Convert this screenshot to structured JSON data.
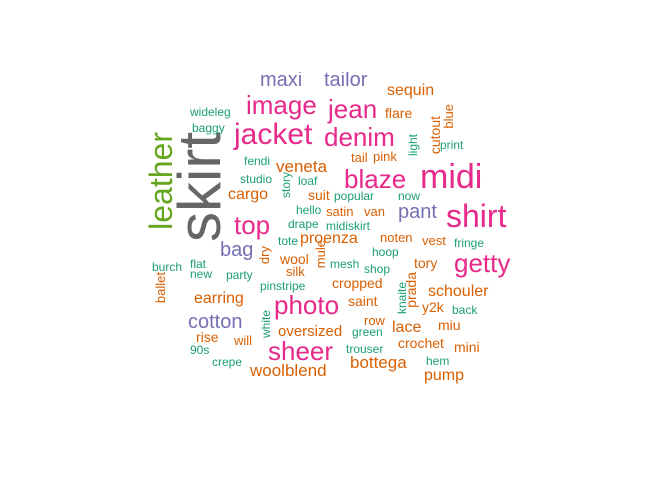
{
  "colors": {
    "pink": "#e7298a",
    "orange": "#d95f02",
    "teal": "#1b9e77",
    "purple": "#7570b3",
    "green": "#66a61e",
    "gray": "#666666"
  },
  "words": [
    {
      "t": "skirt",
      "c": "gray"
    },
    {
      "t": "leather",
      "c": "green"
    },
    {
      "t": "midi",
      "c": "pink"
    },
    {
      "t": "shirt",
      "c": "pink"
    },
    {
      "t": "blaze",
      "c": "pink"
    },
    {
      "t": "jacket",
      "c": "pink"
    },
    {
      "t": "denim",
      "c": "pink"
    },
    {
      "t": "image",
      "c": "pink"
    },
    {
      "t": "jean",
      "c": "pink"
    },
    {
      "t": "photo",
      "c": "pink"
    },
    {
      "t": "sheer",
      "c": "pink"
    },
    {
      "t": "getty",
      "c": "pink"
    },
    {
      "t": "top",
      "c": "pink"
    },
    {
      "t": "maxi",
      "c": "purple"
    },
    {
      "t": "tailor",
      "c": "purple"
    },
    {
      "t": "pant",
      "c": "purple"
    },
    {
      "t": "bag",
      "c": "purple"
    },
    {
      "t": "cotton",
      "c": "purple"
    },
    {
      "t": "sequin",
      "c": "orange"
    },
    {
      "t": "flare",
      "c": "orange"
    },
    {
      "t": "veneta",
      "c": "orange"
    },
    {
      "t": "cargo",
      "c": "orange"
    },
    {
      "t": "proenza",
      "c": "orange"
    },
    {
      "t": "earring",
      "c": "orange"
    },
    {
      "t": "schouler",
      "c": "orange"
    },
    {
      "t": "bottega",
      "c": "orange"
    },
    {
      "t": "woolblend",
      "c": "orange"
    },
    {
      "t": "pump",
      "c": "orange"
    },
    {
      "t": "oversized",
      "c": "orange"
    },
    {
      "t": "lace",
      "c": "orange"
    },
    {
      "t": "tory",
      "c": "orange"
    },
    {
      "t": "cropped",
      "c": "orange"
    },
    {
      "t": "saint",
      "c": "orange"
    },
    {
      "t": "wool",
      "c": "orange"
    },
    {
      "t": "silk",
      "c": "orange"
    },
    {
      "t": "satin",
      "c": "orange"
    },
    {
      "t": "van",
      "c": "orange"
    },
    {
      "t": "noten",
      "c": "orange"
    },
    {
      "t": "vest",
      "c": "orange"
    },
    {
      "t": "tail",
      "c": "orange"
    },
    {
      "t": "pink",
      "c": "orange"
    },
    {
      "t": "suit",
      "c": "orange"
    },
    {
      "t": "rise",
      "c": "orange"
    },
    {
      "t": "will",
      "c": "orange"
    },
    {
      "t": "row",
      "c": "orange"
    },
    {
      "t": "crochet",
      "c": "orange"
    },
    {
      "t": "mini",
      "c": "orange"
    },
    {
      "t": "miu",
      "c": "orange"
    },
    {
      "t": "y2k",
      "c": "orange"
    },
    {
      "t": "cutout",
      "c": "orange"
    },
    {
      "t": "prada",
      "c": "orange"
    },
    {
      "t": "mule",
      "c": "orange"
    },
    {
      "t": "dry",
      "c": "orange"
    },
    {
      "t": "ballet",
      "c": "orange"
    },
    {
      "t": "wideleg",
      "c": "teal"
    },
    {
      "t": "baggy",
      "c": "teal"
    },
    {
      "t": "fendi",
      "c": "teal"
    },
    {
      "t": "studio",
      "c": "teal"
    },
    {
      "t": "loaf",
      "c": "teal"
    },
    {
      "t": "story",
      "c": "teal"
    },
    {
      "t": "hello",
      "c": "teal"
    },
    {
      "t": "popular",
      "c": "teal"
    },
    {
      "t": "now",
      "c": "teal"
    },
    {
      "t": "drape",
      "c": "teal"
    },
    {
      "t": "midiskirt",
      "c": "teal"
    },
    {
      "t": "tote",
      "c": "teal"
    },
    {
      "t": "fringe",
      "c": "teal"
    },
    {
      "t": "hoop",
      "c": "teal"
    },
    {
      "t": "mesh",
      "c": "teal"
    },
    {
      "t": "shop",
      "c": "teal"
    },
    {
      "t": "burch",
      "c": "teal"
    },
    {
      "t": "flat",
      "c": "teal"
    },
    {
      "t": "new",
      "c": "teal"
    },
    {
      "t": "party",
      "c": "teal"
    },
    {
      "t": "pinstripe",
      "c": "teal"
    },
    {
      "t": "back",
      "c": "teal"
    },
    {
      "t": "green",
      "c": "teal"
    },
    {
      "t": "trouser",
      "c": "teal"
    },
    {
      "t": "hem",
      "c": "teal"
    },
    {
      "t": "90s",
      "c": "teal"
    },
    {
      "t": "crepe",
      "c": "teal"
    },
    {
      "t": "white",
      "c": "teal"
    },
    {
      "t": "knaite",
      "c": "teal"
    },
    {
      "t": "print",
      "c": "teal"
    },
    {
      "t": "light",
      "c": "teal"
    },
    {
      "t": "blue",
      "c": "orange"
    }
  ]
}
